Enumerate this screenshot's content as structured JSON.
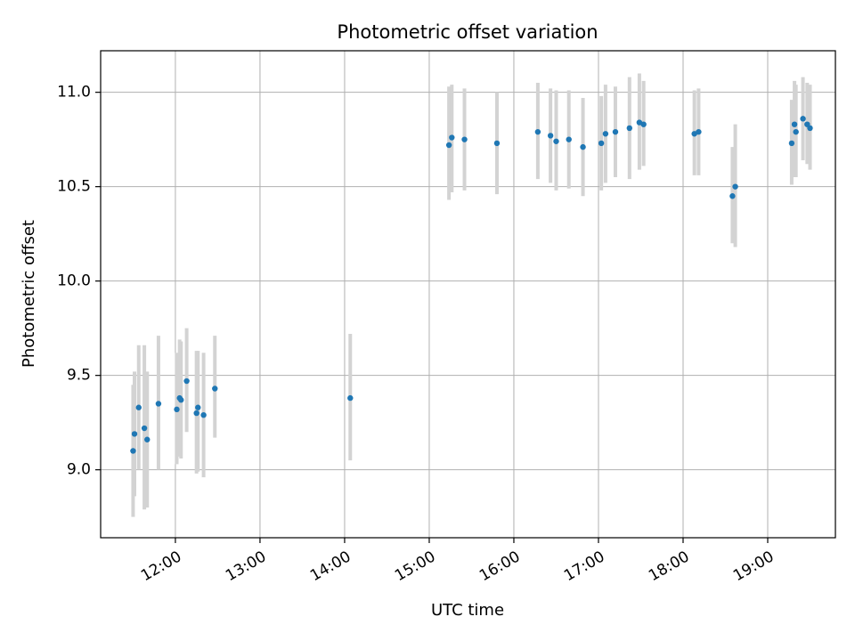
{
  "chart_data": {
    "type": "scatter",
    "title": "Photometric offset variation",
    "xlabel": "UTC time",
    "ylabel": "Photometric offset",
    "x_ticks": [
      "12:00",
      "13:00",
      "14:00",
      "15:00",
      "16:00",
      "17:00",
      "18:00",
      "19:00"
    ],
    "y_ticks": [
      "9.0",
      "9.5",
      "10.0",
      "10.5",
      "11.0"
    ],
    "xlim": [
      "11:07",
      "19:48"
    ],
    "ylim": [
      8.64,
      11.22
    ],
    "grid": true,
    "colors": {
      "point": "#1f77b4",
      "errorbar": "#d3d3d3",
      "grid": "#b0b0b0"
    },
    "points": [
      {
        "x": "11:30",
        "y": 9.1,
        "err_low": 8.75,
        "err_high": 9.45
      },
      {
        "x": "11:31",
        "y": 9.19,
        "err_low": 8.86,
        "err_high": 9.52
      },
      {
        "x": "11:34",
        "y": 9.33,
        "err_low": 9.0,
        "err_high": 9.66
      },
      {
        "x": "11:38",
        "y": 9.22,
        "err_low": 8.79,
        "err_high": 9.66
      },
      {
        "x": "11:40",
        "y": 9.16,
        "err_low": 8.8,
        "err_high": 9.52
      },
      {
        "x": "11:48",
        "y": 9.35,
        "err_low": 9.0,
        "err_high": 9.71
      },
      {
        "x": "12:01",
        "y": 9.32,
        "err_low": 9.03,
        "err_high": 9.62
      },
      {
        "x": "12:03",
        "y": 9.38,
        "err_low": 9.07,
        "err_high": 9.69
      },
      {
        "x": "12:04",
        "y": 9.37,
        "err_low": 9.06,
        "err_high": 9.68
      },
      {
        "x": "12:08",
        "y": 9.47,
        "err_low": 9.2,
        "err_high": 9.75
      },
      {
        "x": "12:15",
        "y": 9.3,
        "err_low": 8.98,
        "err_high": 9.63
      },
      {
        "x": "12:16",
        "y": 9.33,
        "err_low": 8.99,
        "err_high": 9.63
      },
      {
        "x": "12:20",
        "y": 9.29,
        "err_low": 8.96,
        "err_high": 9.62
      },
      {
        "x": "12:28",
        "y": 9.43,
        "err_low": 9.17,
        "err_high": 9.71
      },
      {
        "x": "14:04",
        "y": 9.38,
        "err_low": 9.05,
        "err_high": 9.72
      },
      {
        "x": "15:14",
        "y": 10.72,
        "err_low": 10.43,
        "err_high": 11.03
      },
      {
        "x": "15:16",
        "y": 10.76,
        "err_low": 10.47,
        "err_high": 11.04
      },
      {
        "x": "15:25",
        "y": 10.75,
        "err_low": 10.48,
        "err_high": 11.02
      },
      {
        "x": "15:48",
        "y": 10.73,
        "err_low": 10.46,
        "err_high": 11.0
      },
      {
        "x": "16:17",
        "y": 10.79,
        "err_low": 10.54,
        "err_high": 11.05
      },
      {
        "x": "16:26",
        "y": 10.77,
        "err_low": 10.52,
        "err_high": 11.02
      },
      {
        "x": "16:30",
        "y": 10.74,
        "err_low": 10.48,
        "err_high": 11.01
      },
      {
        "x": "16:39",
        "y": 10.75,
        "err_low": 10.49,
        "err_high": 11.01
      },
      {
        "x": "16:49",
        "y": 10.71,
        "err_low": 10.45,
        "err_high": 10.97
      },
      {
        "x": "17:02",
        "y": 10.73,
        "err_low": 10.48,
        "err_high": 10.98
      },
      {
        "x": "17:05",
        "y": 10.78,
        "err_low": 10.52,
        "err_high": 11.04
      },
      {
        "x": "17:12",
        "y": 10.79,
        "err_low": 10.55,
        "err_high": 11.03
      },
      {
        "x": "17:22",
        "y": 10.81,
        "err_low": 10.54,
        "err_high": 11.08
      },
      {
        "x": "17:29",
        "y": 10.84,
        "err_low": 10.59,
        "err_high": 11.1
      },
      {
        "x": "17:32",
        "y": 10.83,
        "err_low": 10.61,
        "err_high": 11.06
      },
      {
        "x": "18:08",
        "y": 10.78,
        "err_low": 10.56,
        "err_high": 11.01
      },
      {
        "x": "18:11",
        "y": 10.79,
        "err_low": 10.56,
        "err_high": 11.02
      },
      {
        "x": "18:35",
        "y": 10.45,
        "err_low": 10.2,
        "err_high": 10.71
      },
      {
        "x": "18:37",
        "y": 10.5,
        "err_low": 10.18,
        "err_high": 10.83
      },
      {
        "x": "19:17",
        "y": 10.73,
        "err_low": 10.51,
        "err_high": 10.96
      },
      {
        "x": "19:19",
        "y": 10.83,
        "err_low": 10.55,
        "err_high": 11.06
      },
      {
        "x": "19:20",
        "y": 10.79,
        "err_low": 10.55,
        "err_high": 11.04
      },
      {
        "x": "19:25",
        "y": 10.86,
        "err_low": 10.64,
        "err_high": 11.08
      },
      {
        "x": "19:28",
        "y": 10.83,
        "err_low": 10.62,
        "err_high": 11.05
      },
      {
        "x": "19:30",
        "y": 10.81,
        "err_low": 10.59,
        "err_high": 11.04
      }
    ]
  }
}
